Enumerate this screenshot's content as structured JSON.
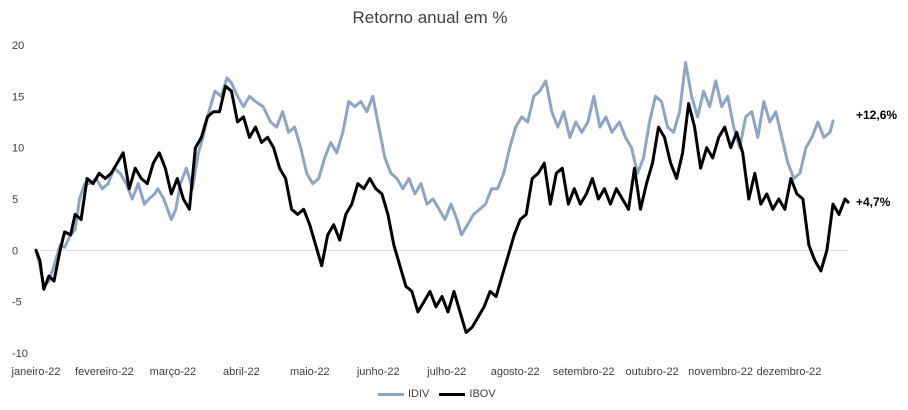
{
  "chart_data": {
    "type": "line",
    "title": "Retorno anual em %",
    "ylim": [
      -10,
      20
    ],
    "yticks": [
      "20",
      "15",
      "10",
      "5",
      "0",
      "-5",
      "-10"
    ],
    "months": [
      "janeiro-22",
      "fevereiro-22",
      "março-22",
      "abril-22",
      "maio-22",
      "junho-22",
      "julho-22",
      "agosto-22",
      "setembro-22",
      "outubro-22",
      "novembro-22",
      "dezembro-22"
    ],
    "legend_position": "bottom",
    "grid": false,
    "series": [
      {
        "name": "IDIV",
        "color": "#8ea5c3",
        "end_label": "+12,6%",
        "values": [
          [
            0.0,
            0
          ],
          [
            0.13,
            -1.5
          ],
          [
            0.26,
            -3.5
          ],
          [
            0.43,
            -3.0
          ],
          [
            0.6,
            -1.5
          ],
          [
            0.8,
            0.5
          ],
          [
            0.95,
            0.3
          ],
          [
            1.15,
            1.5
          ],
          [
            1.3,
            2.0
          ],
          [
            1.45,
            5.0
          ],
          [
            1.62,
            6.5
          ],
          [
            1.8,
            6.5
          ],
          [
            2.0,
            7.0
          ],
          [
            2.2,
            6.0
          ],
          [
            2.4,
            6.5
          ],
          [
            2.6,
            8.0
          ],
          [
            2.8,
            7.5
          ],
          [
            3.0,
            6.5
          ],
          [
            3.2,
            5.0
          ],
          [
            3.4,
            6.5
          ],
          [
            3.6,
            4.5
          ],
          [
            3.75,
            5.0
          ],
          [
            3.95,
            5.5
          ],
          [
            4.05,
            6.0
          ],
          [
            4.25,
            5.0
          ],
          [
            4.5,
            3.0
          ],
          [
            4.65,
            4.0
          ],
          [
            4.8,
            6.5
          ],
          [
            5.0,
            8.0
          ],
          [
            5.2,
            6.0
          ],
          [
            5.4,
            9.5
          ],
          [
            5.55,
            11.0
          ],
          [
            5.75,
            13.5
          ],
          [
            5.95,
            15.5
          ],
          [
            6.15,
            15.0
          ],
          [
            6.35,
            16.8
          ],
          [
            6.5,
            16.3
          ],
          [
            6.7,
            15.0
          ],
          [
            6.9,
            14.0
          ],
          [
            7.1,
            15.0
          ],
          [
            7.3,
            14.5
          ],
          [
            7.55,
            14.0
          ],
          [
            7.8,
            12.5
          ],
          [
            8.0,
            12.0
          ],
          [
            8.2,
            13.5
          ],
          [
            8.4,
            11.5
          ],
          [
            8.6,
            12.0
          ],
          [
            8.8,
            10.0
          ],
          [
            9.0,
            7.5
          ],
          [
            9.2,
            6.5
          ],
          [
            9.4,
            7.0
          ],
          [
            9.6,
            9.0
          ],
          [
            9.8,
            10.5
          ],
          [
            10.0,
            9.5
          ],
          [
            10.2,
            11.5
          ],
          [
            10.4,
            14.5
          ],
          [
            10.6,
            14.0
          ],
          [
            10.8,
            14.5
          ],
          [
            11.0,
            13.5
          ],
          [
            11.2,
            15.0
          ],
          [
            11.4,
            12.0
          ],
          [
            11.6,
            9.0
          ],
          [
            11.8,
            7.5
          ],
          [
            12.0,
            7.0
          ],
          [
            12.2,
            6.0
          ],
          [
            12.4,
            7.0
          ],
          [
            12.6,
            5.5
          ],
          [
            12.8,
            6.5
          ],
          [
            13.0,
            4.5
          ],
          [
            13.2,
            5.0
          ],
          [
            13.4,
            4.0
          ],
          [
            13.6,
            3.0
          ],
          [
            13.8,
            4.5
          ],
          [
            14.0,
            3.0
          ],
          [
            14.15,
            1.5
          ],
          [
            14.35,
            2.5
          ],
          [
            14.55,
            3.5
          ],
          [
            14.75,
            4.0
          ],
          [
            14.95,
            4.5
          ],
          [
            15.15,
            6.0
          ],
          [
            15.35,
            6.0
          ],
          [
            15.55,
            7.5
          ],
          [
            15.75,
            10.0
          ],
          [
            15.95,
            12.0
          ],
          [
            16.15,
            13.0
          ],
          [
            16.35,
            12.5
          ],
          [
            16.55,
            15.0
          ],
          [
            16.75,
            15.5
          ],
          [
            16.95,
            16.5
          ],
          [
            17.15,
            13.5
          ],
          [
            17.35,
            12.0
          ],
          [
            17.55,
            13.5
          ],
          [
            17.75,
            11.0
          ],
          [
            17.95,
            12.5
          ],
          [
            18.15,
            11.5
          ],
          [
            18.35,
            12.5
          ],
          [
            18.55,
            15.0
          ],
          [
            18.75,
            12.0
          ],
          [
            18.95,
            13.0
          ],
          [
            19.15,
            11.5
          ],
          [
            19.4,
            12.5
          ],
          [
            19.6,
            11.0
          ],
          [
            19.8,
            10.0
          ],
          [
            20.0,
            7.5
          ],
          [
            20.2,
            9.0
          ],
          [
            20.4,
            12.5
          ],
          [
            20.6,
            15.0
          ],
          [
            20.8,
            14.5
          ],
          [
            21.0,
            12.0
          ],
          [
            21.2,
            11.5
          ],
          [
            21.4,
            13.5
          ],
          [
            21.6,
            18.3
          ],
          [
            21.8,
            15.0
          ],
          [
            22.0,
            13.0
          ],
          [
            22.2,
            15.5
          ],
          [
            22.4,
            14.0
          ],
          [
            22.6,
            16.5
          ],
          [
            22.8,
            14.0
          ],
          [
            23.0,
            15.0
          ],
          [
            23.2,
            12.0
          ],
          [
            23.4,
            10.0
          ],
          [
            23.6,
            13.0
          ],
          [
            23.8,
            13.5
          ],
          [
            24.0,
            11.0
          ],
          [
            24.2,
            14.5
          ],
          [
            24.4,
            12.5
          ],
          [
            24.6,
            13.5
          ],
          [
            24.8,
            11.0
          ],
          [
            25.0,
            8.5
          ],
          [
            25.2,
            7.0
          ],
          [
            25.4,
            7.5
          ],
          [
            25.6,
            10.0
          ],
          [
            25.8,
            11.0
          ],
          [
            26.0,
            12.5
          ],
          [
            26.2,
            11.0
          ],
          [
            26.4,
            11.5
          ],
          [
            26.5,
            12.6
          ]
        ]
      },
      {
        "name": "IBOV",
        "color": "#000000",
        "end_label": "+4,7%",
        "values": [
          [
            0.0,
            0
          ],
          [
            0.13,
            -1.0
          ],
          [
            0.26,
            -3.8
          ],
          [
            0.43,
            -2.5
          ],
          [
            0.6,
            -3.0
          ],
          [
            0.8,
            0.0
          ],
          [
            0.95,
            1.8
          ],
          [
            1.15,
            1.5
          ],
          [
            1.3,
            3.5
          ],
          [
            1.5,
            3.0
          ],
          [
            1.7,
            7.0
          ],
          [
            1.9,
            6.5
          ],
          [
            2.1,
            7.5
          ],
          [
            2.3,
            7.0
          ],
          [
            2.5,
            7.5
          ],
          [
            2.7,
            8.5
          ],
          [
            2.9,
            9.5
          ],
          [
            3.1,
            6.0
          ],
          [
            3.3,
            8.0
          ],
          [
            3.5,
            7.0
          ],
          [
            3.7,
            6.5
          ],
          [
            3.9,
            8.5
          ],
          [
            4.1,
            9.5
          ],
          [
            4.3,
            8.0
          ],
          [
            4.5,
            5.5
          ],
          [
            4.7,
            7.0
          ],
          [
            4.9,
            5.0
          ],
          [
            5.1,
            4.0
          ],
          [
            5.3,
            10.0
          ],
          [
            5.5,
            11.0
          ],
          [
            5.7,
            13.0
          ],
          [
            5.9,
            13.5
          ],
          [
            6.1,
            13.5
          ],
          [
            6.3,
            16.0
          ],
          [
            6.5,
            15.5
          ],
          [
            6.7,
            12.5
          ],
          [
            6.9,
            13.0
          ],
          [
            7.1,
            11.0
          ],
          [
            7.3,
            12.0
          ],
          [
            7.5,
            10.5
          ],
          [
            7.7,
            11.0
          ],
          [
            7.9,
            10.0
          ],
          [
            8.1,
            8.0
          ],
          [
            8.3,
            7.0
          ],
          [
            8.5,
            4.0
          ],
          [
            8.7,
            3.5
          ],
          [
            8.9,
            4.0
          ],
          [
            9.1,
            2.5
          ],
          [
            9.3,
            0.5
          ],
          [
            9.5,
            -1.5
          ],
          [
            9.7,
            1.5
          ],
          [
            9.9,
            2.5
          ],
          [
            10.1,
            1.0
          ],
          [
            10.3,
            3.5
          ],
          [
            10.5,
            4.5
          ],
          [
            10.7,
            6.5
          ],
          [
            10.9,
            6.0
          ],
          [
            11.1,
            7.0
          ],
          [
            11.3,
            6.0
          ],
          [
            11.5,
            5.5
          ],
          [
            11.7,
            3.5
          ],
          [
            11.9,
            0.5
          ],
          [
            12.1,
            -1.5
          ],
          [
            12.3,
            -3.5
          ],
          [
            12.5,
            -4.0
          ],
          [
            12.7,
            -6.0
          ],
          [
            12.9,
            -5.0
          ],
          [
            13.1,
            -4.0
          ],
          [
            13.3,
            -5.5
          ],
          [
            13.5,
            -4.5
          ],
          [
            13.7,
            -6.0
          ],
          [
            13.9,
            -4.0
          ],
          [
            14.1,
            -6.0
          ],
          [
            14.3,
            -8.0
          ],
          [
            14.5,
            -7.5
          ],
          [
            14.7,
            -6.5
          ],
          [
            14.9,
            -5.5
          ],
          [
            15.1,
            -4.0
          ],
          [
            15.3,
            -4.5
          ],
          [
            15.5,
            -2.5
          ],
          [
            15.7,
            -0.5
          ],
          [
            15.9,
            1.5
          ],
          [
            16.1,
            3.0
          ],
          [
            16.3,
            3.5
          ],
          [
            16.5,
            7.0
          ],
          [
            16.7,
            7.5
          ],
          [
            16.9,
            8.5
          ],
          [
            17.1,
            4.5
          ],
          [
            17.3,
            7.5
          ],
          [
            17.5,
            8.0
          ],
          [
            17.7,
            4.5
          ],
          [
            17.9,
            6.0
          ],
          [
            18.1,
            4.5
          ],
          [
            18.3,
            5.5
          ],
          [
            18.5,
            7.0
          ],
          [
            18.7,
            5.0
          ],
          [
            18.9,
            6.0
          ],
          [
            19.1,
            4.5
          ],
          [
            19.3,
            6.0
          ],
          [
            19.5,
            5.0
          ],
          [
            19.7,
            4.0
          ],
          [
            19.9,
            8.0
          ],
          [
            20.1,
            4.0
          ],
          [
            20.3,
            6.5
          ],
          [
            20.5,
            8.5
          ],
          [
            20.7,
            12.0
          ],
          [
            20.9,
            11.0
          ],
          [
            21.1,
            8.5
          ],
          [
            21.3,
            7.0
          ],
          [
            21.5,
            9.5
          ],
          [
            21.7,
            14.3
          ],
          [
            21.9,
            12.0
          ],
          [
            22.1,
            8.0
          ],
          [
            22.3,
            10.0
          ],
          [
            22.5,
            9.0
          ],
          [
            22.7,
            11.0
          ],
          [
            22.9,
            12.0
          ],
          [
            23.1,
            10.0
          ],
          [
            23.3,
            11.5
          ],
          [
            23.5,
            9.5
          ],
          [
            23.7,
            5.0
          ],
          [
            23.9,
            7.5
          ],
          [
            24.1,
            4.5
          ],
          [
            24.3,
            5.5
          ],
          [
            24.5,
            4.0
          ],
          [
            24.7,
            5.0
          ],
          [
            24.9,
            4.0
          ],
          [
            25.1,
            7.0
          ],
          [
            25.3,
            5.5
          ],
          [
            25.5,
            5.0
          ],
          [
            25.7,
            0.5
          ],
          [
            25.9,
            -1.0
          ],
          [
            26.1,
            -2.0
          ],
          [
            26.3,
            0.0
          ],
          [
            26.5,
            4.5
          ],
          [
            26.7,
            3.5
          ],
          [
            26.9,
            5.0
          ],
          [
            27.0,
            4.7
          ]
        ]
      }
    ]
  }
}
